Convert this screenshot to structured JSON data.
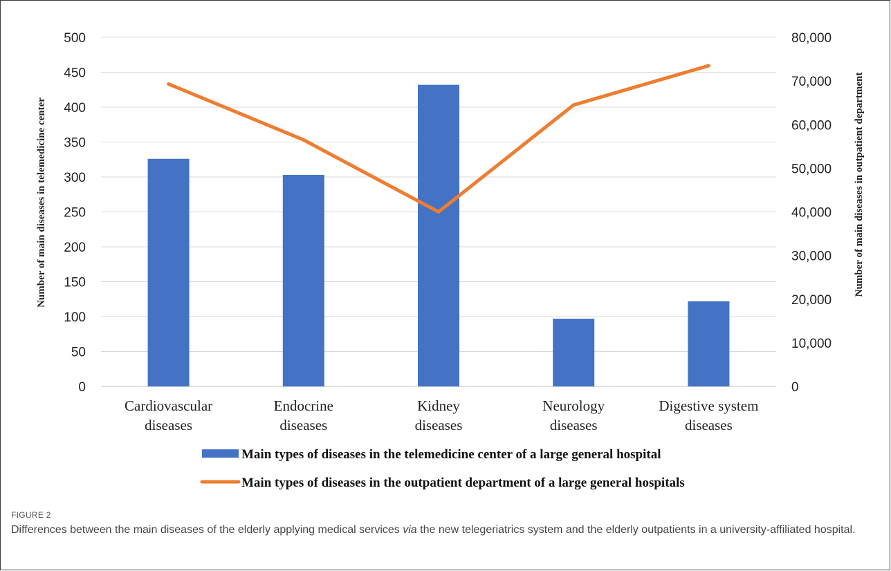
{
  "chart_data": {
    "type": "bar",
    "categories": [
      [
        "Cardiovascular",
        "diseases"
      ],
      [
        "Endocrine",
        "diseases"
      ],
      [
        "Kidney",
        "diseases"
      ],
      [
        "Neurology",
        "diseases"
      ],
      [
        "Digestive system",
        "diseases"
      ]
    ],
    "series": [
      {
        "name": "Main types of diseases in the telemedicine center of a large general hospital",
        "kind": "bar",
        "axis": "left",
        "color": "#4472c4",
        "values": [
          326,
          303,
          432,
          97,
          122
        ]
      },
      {
        "name": "Main types of diseases in the outpatient department of a large general hospitals",
        "kind": "line",
        "axis": "right",
        "color": "#ed7d31",
        "values": [
          69300,
          56500,
          40000,
          64500,
          73500
        ]
      }
    ],
    "y_left": {
      "label": "Number of main diseases in telemedicine center",
      "range": [
        0,
        500
      ],
      "ticks": [
        "0",
        "50",
        "100",
        "150",
        "200",
        "250",
        "300",
        "350",
        "400",
        "450",
        "500"
      ]
    },
    "y_right": {
      "label": "Number of main diseases in outpatient department",
      "range": [
        0,
        80000
      ],
      "ticks": [
        "0",
        "10,000",
        "20,000",
        "30,000",
        "40,000",
        "50,000",
        "60,000",
        "70,000",
        "80,000"
      ]
    },
    "grid": true,
    "legend_position": "bottom"
  },
  "figure": {
    "label": "FIGURE 2",
    "caption_before": "Differences between the main diseases of the elderly applying medical services ",
    "caption_em": "via",
    "caption_after": " the new telegeriatrics system and the elderly outpatients in a university-affiliated hospital."
  }
}
